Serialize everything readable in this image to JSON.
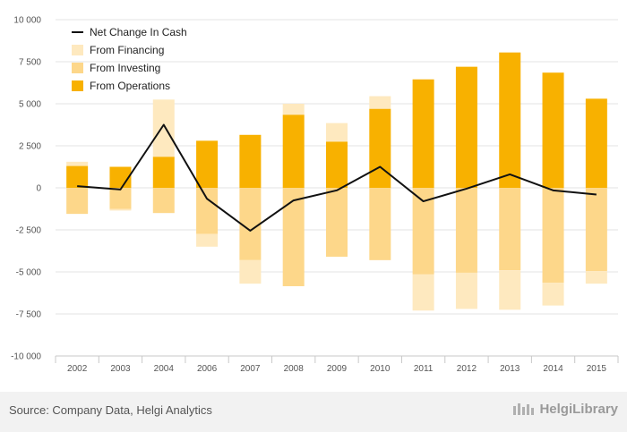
{
  "chart_data": {
    "type": "bar",
    "categories": [
      "2002",
      "2003",
      "2004",
      "2006",
      "2007",
      "2008",
      "2009",
      "2010",
      "2011",
      "2012",
      "2013",
      "2014",
      "2015"
    ],
    "series": [
      {
        "name": "From Operations",
        "kind": "bar",
        "color": "#f8b100",
        "values": [
          1300,
          1250,
          1850,
          2800,
          3150,
          4350,
          2750,
          4700,
          6450,
          7200,
          8050,
          6850,
          5300
        ]
      },
      {
        "name": "From Investing",
        "kind": "bar",
        "color": "#fdd78a",
        "values": [
          -1550,
          -1250,
          -1500,
          -2750,
          -4300,
          -5850,
          -4100,
          -4300,
          -5150,
          -5050,
          -4900,
          -5650,
          -4950
        ]
      },
      {
        "name": "From Financing",
        "kind": "bar",
        "color": "#fee9bf",
        "values": [
          250,
          -100,
          3400,
          -750,
          -1400,
          650,
          1100,
          750,
          -2150,
          -2150,
          -2350,
          -1350,
          -750
        ]
      },
      {
        "name": "Net Change In Cash",
        "kind": "line",
        "color": "#111111",
        "values": [
          100,
          -100,
          3750,
          -650,
          -2550,
          -750,
          -150,
          1250,
          -800,
          -50,
          800,
          -150,
          -400
        ]
      }
    ],
    "y_ticks": [
      "10 000",
      "7 500",
      "5 000",
      "2 500",
      "0",
      "-2 500",
      "-5 000",
      "-7 500",
      "-10 000"
    ],
    "ylim": [
      -10000,
      10000
    ],
    "legend_order": [
      "Net Change In Cash",
      "From Financing",
      "From Investing",
      "From Operations"
    ],
    "legend_position": "top-left",
    "grid": true
  },
  "footer": {
    "source": "Source: Company Data, Helgi Analytics",
    "logo_text": "HelgiLibrary"
  }
}
